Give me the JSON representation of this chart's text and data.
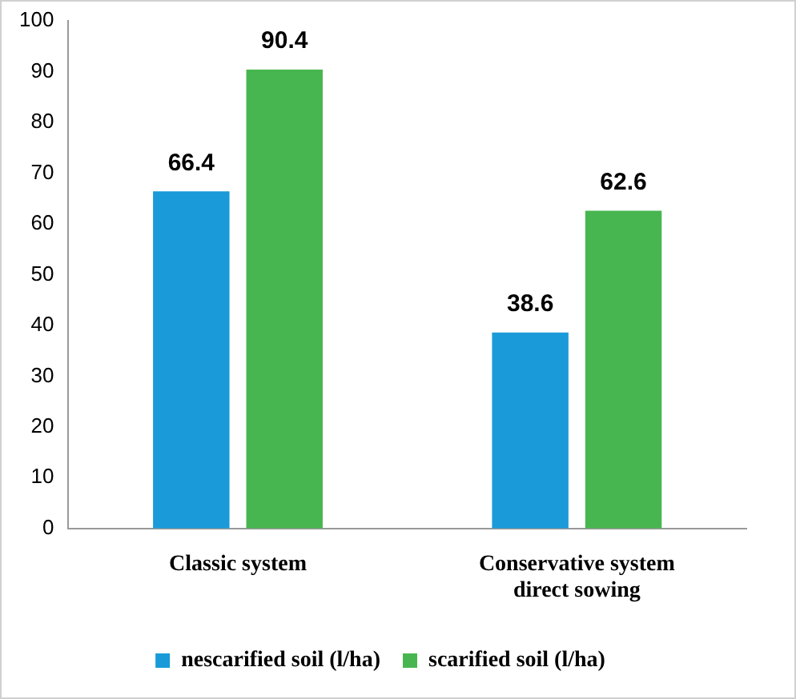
{
  "chart_data": {
    "type": "bar",
    "categories": [
      "Classic system",
      "Conservative system direct sowing"
    ],
    "series": [
      {
        "name": "nescarified soil (l/ha)",
        "color": "#1a9ad9",
        "values": [
          66.4,
          38.6
        ]
      },
      {
        "name": "scarified soil (l/ha)",
        "color": "#48b650",
        "values": [
          90.4,
          62.6
        ]
      }
    ],
    "ylim": [
      0,
      100
    ],
    "yticks": [
      0,
      10,
      20,
      30,
      40,
      50,
      60,
      70,
      80,
      90,
      100
    ],
    "grid": false,
    "legend": "bottom",
    "data_labels": true
  }
}
